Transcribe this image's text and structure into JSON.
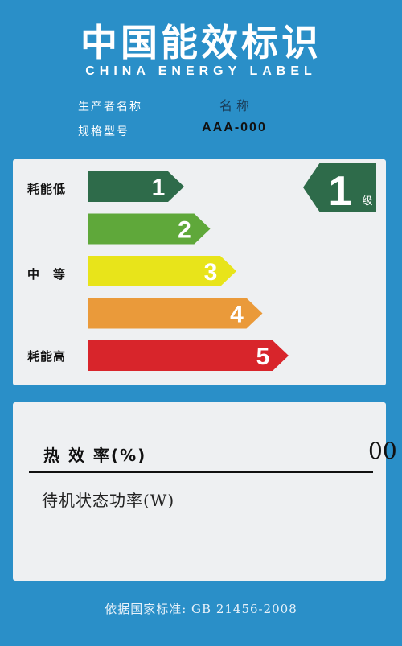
{
  "header": {
    "title_cn": "中国能效标识",
    "title_en": "CHINA ENERGY LABEL"
  },
  "fields": {
    "manufacturer_label": "生产者名称",
    "manufacturer_value": "名 称",
    "model_label": "规格型号",
    "model_value": "AAA-000"
  },
  "scale": {
    "low_label": "耗能低",
    "mid_label": "中　等",
    "high_label": "耗能高",
    "grades": [
      {
        "num": "1",
        "color": "#2e6b4a"
      },
      {
        "num": "2",
        "color": "#5fa83a"
      },
      {
        "num": "3",
        "color": "#e8e41a"
      },
      {
        "num": "4",
        "color": "#ea9a3a"
      },
      {
        "num": "5",
        "color": "#d8252b"
      }
    ],
    "rating": {
      "num": "1",
      "suffix": "级",
      "color": "#2e6b4a"
    }
  },
  "details": {
    "efficiency_label": "热 效 率(%)",
    "efficiency_value": "00",
    "standby_label": "待机状态功率(W)"
  },
  "footer": {
    "standard": "依据国家标准: GB 21456-2008"
  }
}
